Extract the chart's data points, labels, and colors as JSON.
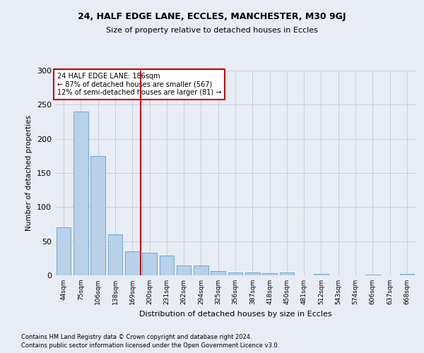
{
  "title1": "24, HALF EDGE LANE, ECCLES, MANCHESTER, M30 9GJ",
  "title2": "Size of property relative to detached houses in Eccles",
  "xlabel": "Distribution of detached houses by size in Eccles",
  "ylabel": "Number of detached properties",
  "footnote1": "Contains HM Land Registry data © Crown copyright and database right 2024.",
  "footnote2": "Contains public sector information licensed under the Open Government Licence v3.0.",
  "annotation_line1": "24 HALF EDGE LANE: 186sqm",
  "annotation_line2": "← 87% of detached houses are smaller (567)",
  "annotation_line3": "12% of semi-detached houses are larger (81) →",
  "bar_labels": [
    "44sqm",
    "75sqm",
    "106sqm",
    "138sqm",
    "169sqm",
    "200sqm",
    "231sqm",
    "262sqm",
    "294sqm",
    "325sqm",
    "356sqm",
    "387sqm",
    "418sqm",
    "450sqm",
    "481sqm",
    "512sqm",
    "543sqm",
    "574sqm",
    "606sqm",
    "637sqm",
    "668sqm"
  ],
  "bar_values": [
    70,
    240,
    175,
    60,
    35,
    33,
    29,
    14,
    15,
    6,
    4,
    4,
    3,
    4,
    0,
    2,
    0,
    0,
    1,
    0,
    2
  ],
  "bar_color": "#b8d0e8",
  "bar_edge_color": "#6fa8d0",
  "vline_x": 4.5,
  "vline_color": "#cc0000",
  "annotation_box_color": "#cc0000",
  "background_color": "#e8ecf4",
  "grid_color": "#c8cedd",
  "ylim": [
    0,
    300
  ],
  "yticks": [
    0,
    50,
    100,
    150,
    200,
    250,
    300
  ]
}
